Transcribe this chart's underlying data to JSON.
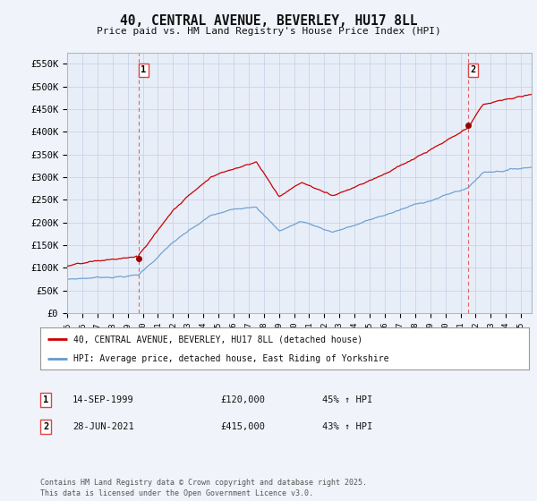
{
  "title": "40, CENTRAL AVENUE, BEVERLEY, HU17 8LL",
  "subtitle": "Price paid vs. HM Land Registry's House Price Index (HPI)",
  "ylabel_ticks": [
    "£0",
    "£50K",
    "£100K",
    "£150K",
    "£200K",
    "£250K",
    "£300K",
    "£350K",
    "£400K",
    "£450K",
    "£500K",
    "£550K"
  ],
  "ytick_vals": [
    0,
    50000,
    100000,
    150000,
    200000,
    250000,
    300000,
    350000,
    400000,
    450000,
    500000,
    550000
  ],
  "ylim": [
    0,
    575000
  ],
  "xlim_start": 1995.0,
  "xlim_end": 2025.7,
  "xtick_years": [
    1995,
    1996,
    1997,
    1998,
    1999,
    2000,
    2001,
    2002,
    2003,
    2004,
    2005,
    2006,
    2007,
    2008,
    2009,
    2010,
    2011,
    2012,
    2013,
    2014,
    2015,
    2016,
    2017,
    2018,
    2019,
    2020,
    2021,
    2022,
    2023,
    2024,
    2025
  ],
  "sale1_x": 1999.71,
  "sale1_y": 120000,
  "sale1_label": "1",
  "sale2_x": 2021.49,
  "sale2_y": 415000,
  "sale2_label": "2",
  "sale1_date": "14-SEP-1999",
  "sale1_price": "£120,000",
  "sale1_hpi": "45% ↑ HPI",
  "sale2_date": "28-JUN-2021",
  "sale2_price": "£415,000",
  "sale2_hpi": "43% ↑ HPI",
  "legend_red": "40, CENTRAL AVENUE, BEVERLEY, HU17 8LL (detached house)",
  "legend_blue": "HPI: Average price, detached house, East Riding of Yorkshire",
  "footer": "Contains HM Land Registry data © Crown copyright and database right 2025.\nThis data is licensed under the Open Government Licence v3.0.",
  "red_color": "#cc0000",
  "blue_color": "#6699cc",
  "vline_color": "#dd4444",
  "background_color": "#f0f4fa",
  "plot_bg": "#e8eef8",
  "grid_color": "#c8d4e8"
}
